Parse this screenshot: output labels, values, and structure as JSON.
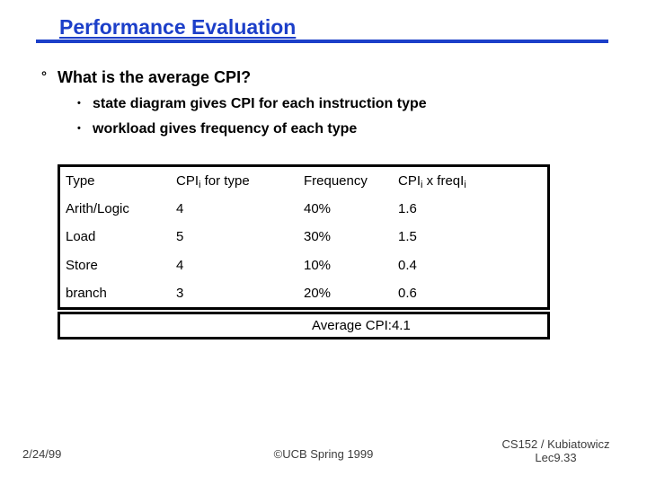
{
  "slide": {
    "title": "Performance Evaluation",
    "heading_bullet_symbol": "°",
    "heading": "What is the average CPI?",
    "sub_bullet_symbol": "•",
    "sub_bullets": [
      "state diagram gives CPI for each instruction type",
      "workload gives frequency of each type"
    ]
  },
  "table": {
    "headers": {
      "type": "Type",
      "cpi_pre": "CPI",
      "cpi_sub": "i",
      "cpi_post": " for type",
      "frequency": "Frequency",
      "product_pre": "CPI",
      "product_sub1": "i",
      "product_mid": " x freqI",
      "product_sub2": "i"
    },
    "rows": [
      {
        "type": "Arith/Logic",
        "cpi": "4",
        "frequency": "40%",
        "product": "1.6"
      },
      {
        "type": "Load",
        "cpi": "5",
        "frequency": "30%",
        "product": "1.5"
      },
      {
        "type": "Store",
        "cpi": "4",
        "frequency": "10%",
        "product": "0.4"
      },
      {
        "type": "branch",
        "cpi": "3",
        "frequency": "20%",
        "product": "0.6"
      }
    ],
    "average_label": "Average CPI:4.1"
  },
  "footer": {
    "date": "2/24/99",
    "center": "©UCB Spring 1999",
    "right_line1": "CS152 / Kubiatowicz",
    "right_line2": "Lec9.33"
  },
  "colors": {
    "title_blue": "#1c3fc9"
  }
}
